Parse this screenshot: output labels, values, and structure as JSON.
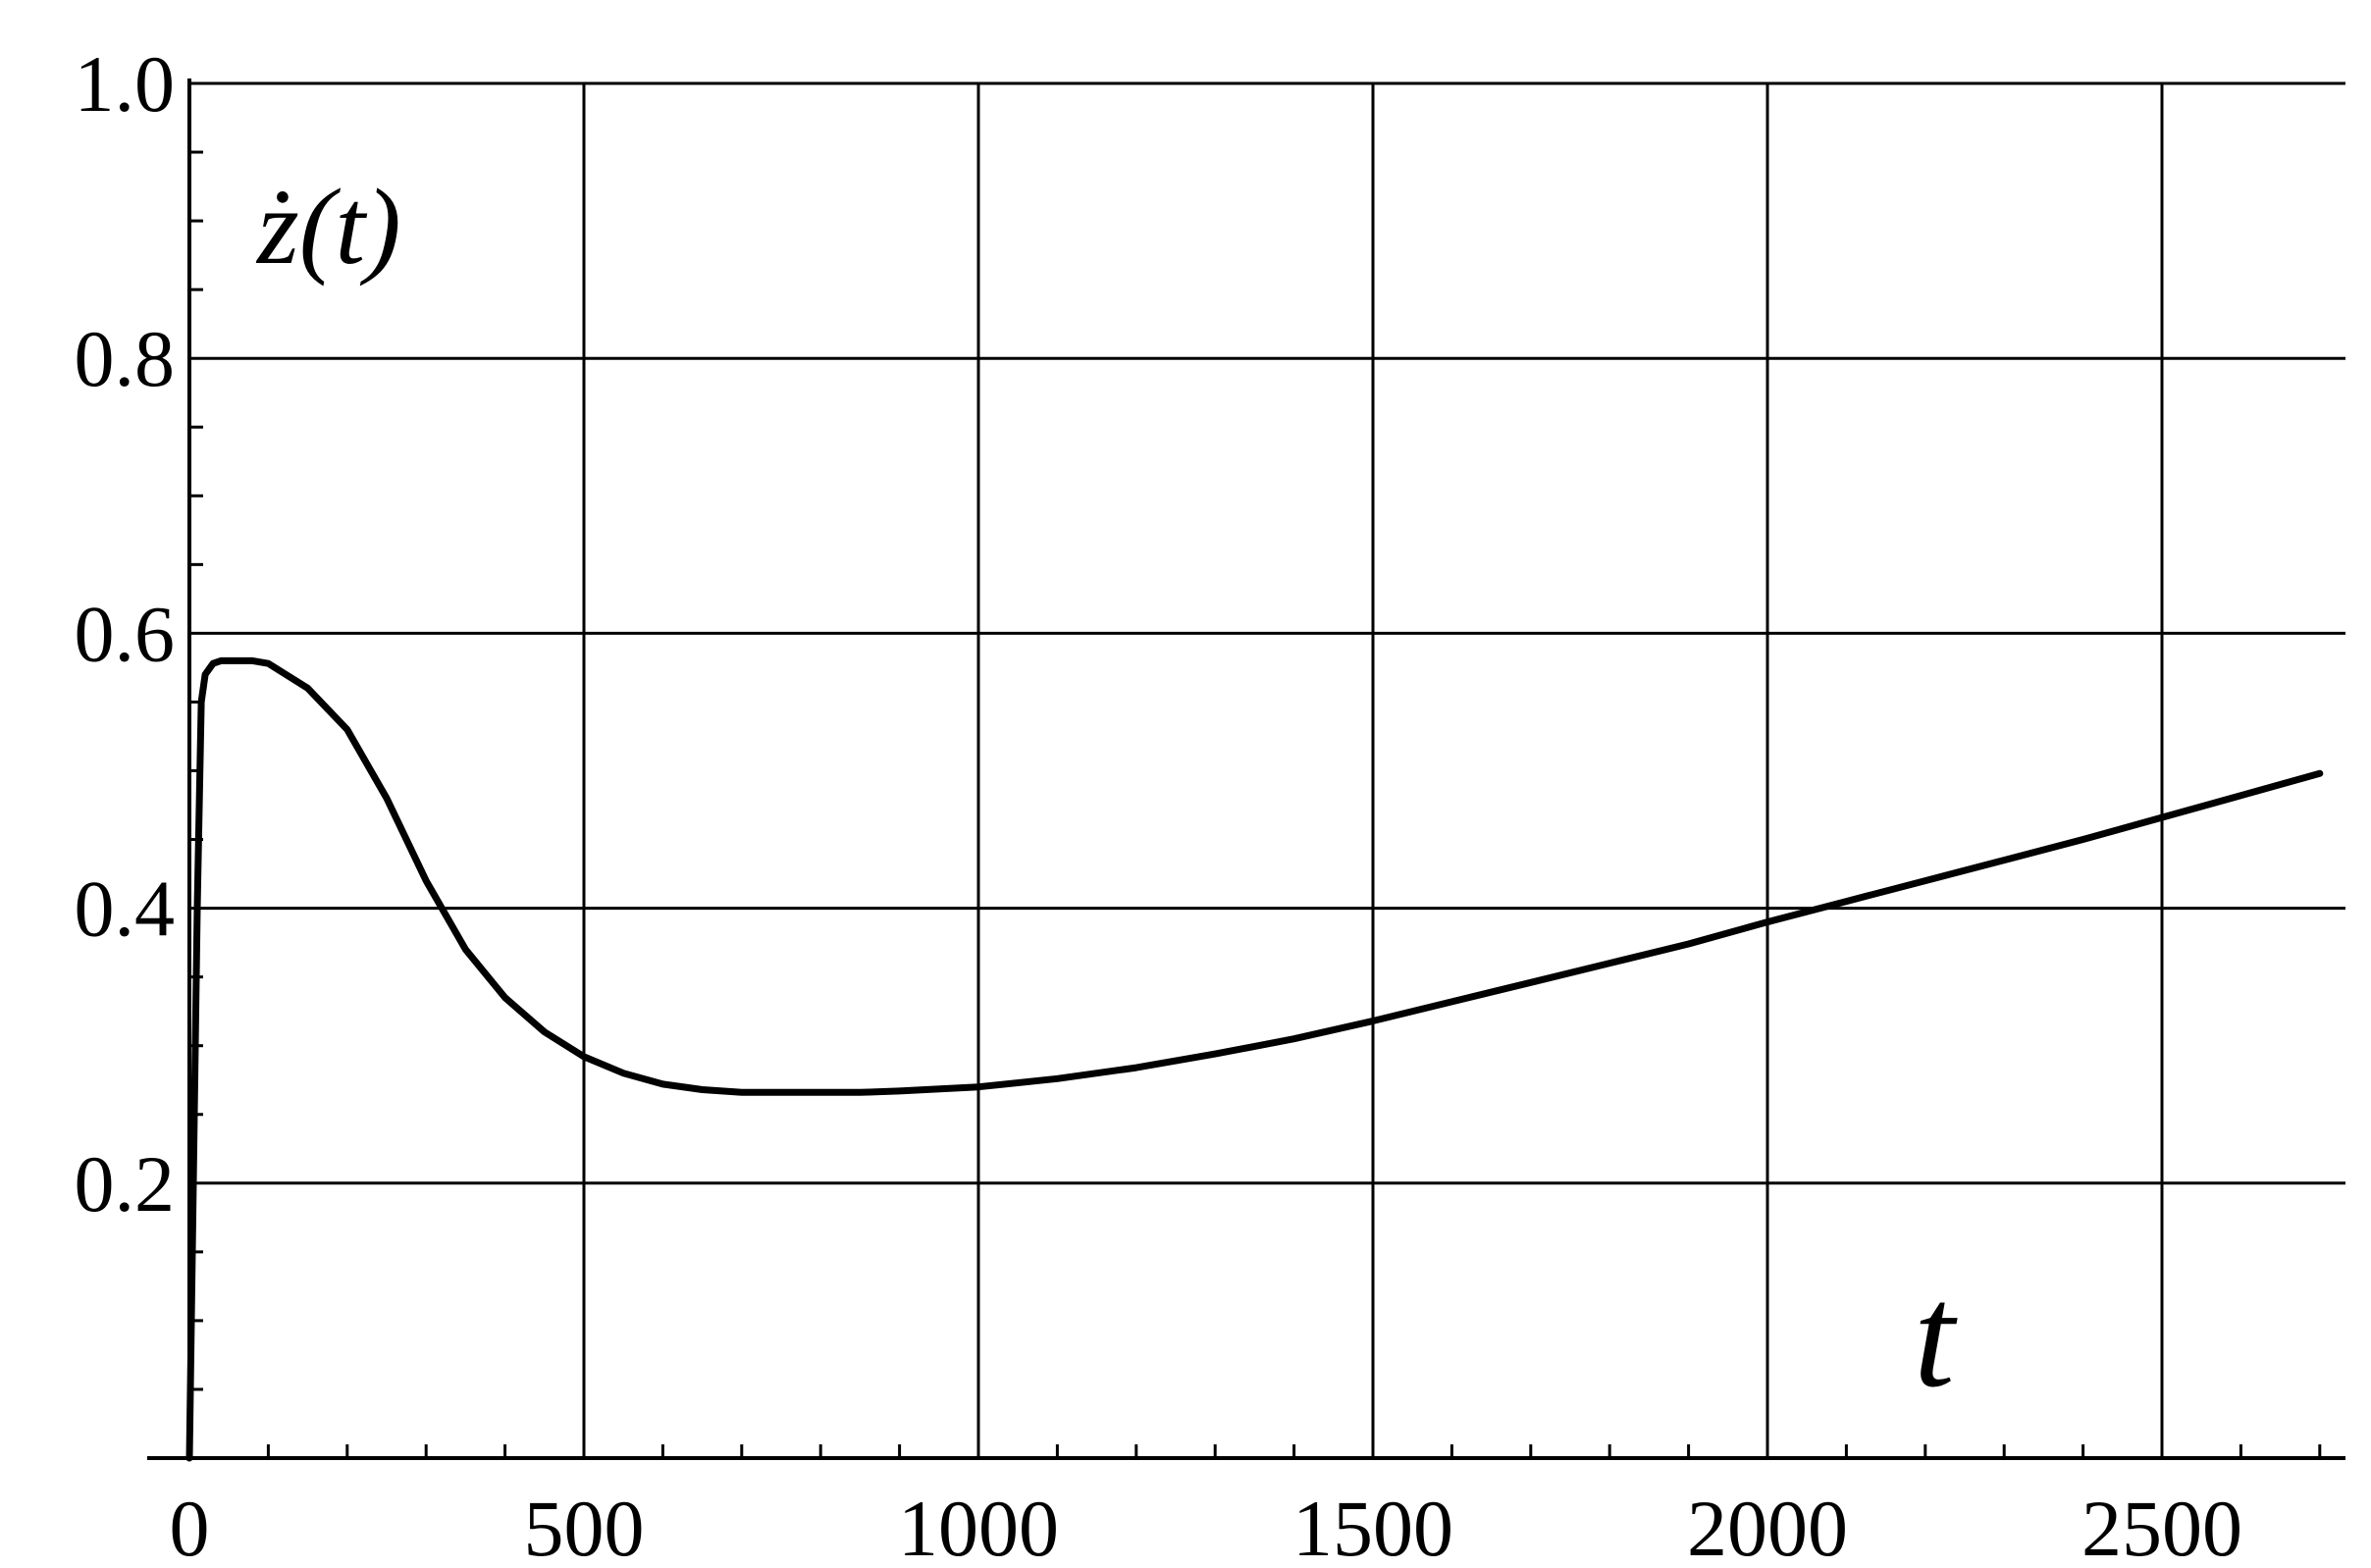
{
  "chart_data": {
    "type": "line",
    "title": "",
    "xlabel": "t",
    "ylabel": "ż(t)",
    "xlim": [
      0,
      2700
    ],
    "ylim": [
      0,
      1.0
    ],
    "grid": true,
    "legend": "none",
    "x_ticks": [
      0,
      500,
      1000,
      1500,
      2000,
      2500
    ],
    "y_ticks": [
      0.2,
      0.4,
      0.6,
      0.8,
      1.0
    ],
    "x_tick_labels": [
      "0",
      "500",
      "1000",
      "1500",
      "2000",
      "2500"
    ],
    "y_tick_labels": [
      "0.2",
      "0.4",
      "0.6",
      "0.8",
      "1.0"
    ],
    "line_color": "#000000",
    "grid_color": "#000000",
    "series": [
      {
        "x": [
          0,
          5,
          10,
          15,
          20,
          30,
          40,
          60,
          80,
          100,
          150,
          200,
          250,
          300,
          350,
          400,
          450,
          500,
          550,
          600,
          650,
          700,
          750,
          800,
          850,
          900,
          1000,
          1100,
          1200,
          1300,
          1400,
          1500,
          1600,
          1700,
          1800,
          1900,
          2000,
          2100,
          2200,
          2300,
          2400,
          2500,
          2600,
          2700
        ],
        "y": [
          0.0,
          0.2,
          0.4,
          0.55,
          0.57,
          0.578,
          0.58,
          0.58,
          0.58,
          0.578,
          0.56,
          0.53,
          0.48,
          0.42,
          0.37,
          0.335,
          0.31,
          0.292,
          0.28,
          0.272,
          0.268,
          0.266,
          0.266,
          0.266,
          0.266,
          0.267,
          0.27,
          0.276,
          0.284,
          0.294,
          0.305,
          0.318,
          0.332,
          0.346,
          0.36,
          0.374,
          0.39,
          0.405,
          0.42,
          0.435,
          0.45,
          0.466,
          0.482,
          0.498
        ]
      }
    ]
  }
}
